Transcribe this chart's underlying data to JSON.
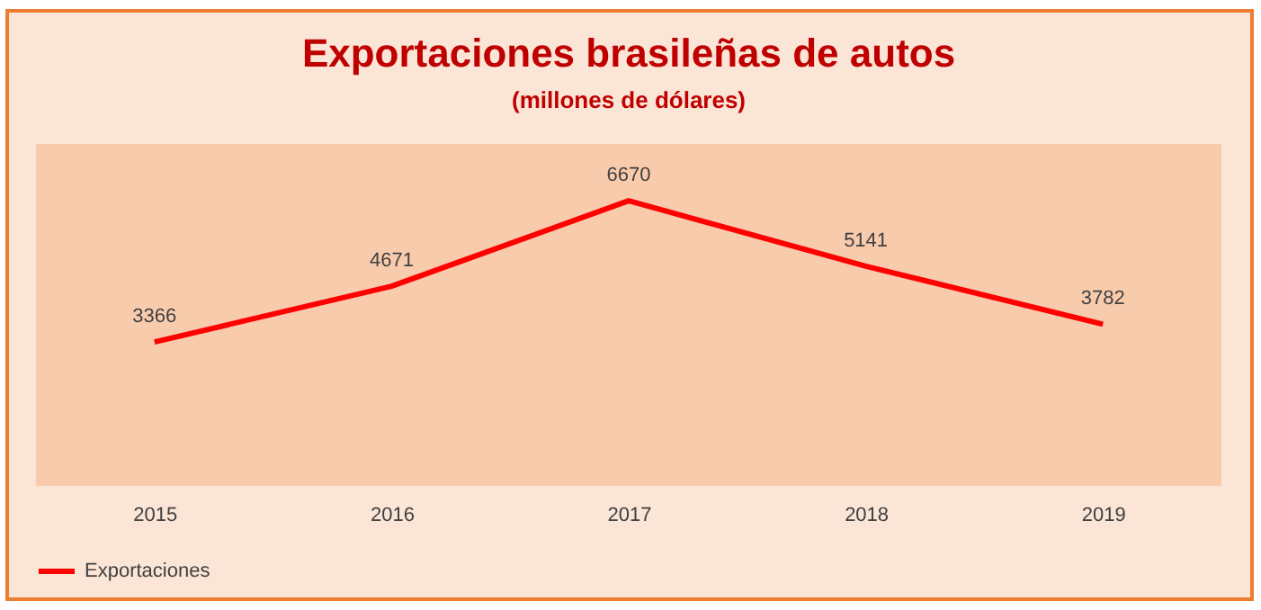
{
  "chart_data": {
    "type": "line",
    "title": "Exportaciones brasileñas de autos",
    "subtitle": "(millones de dólares)",
    "categories": [
      "2015",
      "2016",
      "2017",
      "2018",
      "2019"
    ],
    "series": [
      {
        "name": "Exportaciones",
        "color": "#ff0000",
        "values": [
          3366,
          4671,
          6670,
          5141,
          3782
        ]
      }
    ],
    "ylim": [
      0,
      8000
    ],
    "data_labels": true,
    "legend": "bottom left",
    "tick_labels": "x",
    "grid": false,
    "marker": "none",
    "line_style": "solid"
  }
}
